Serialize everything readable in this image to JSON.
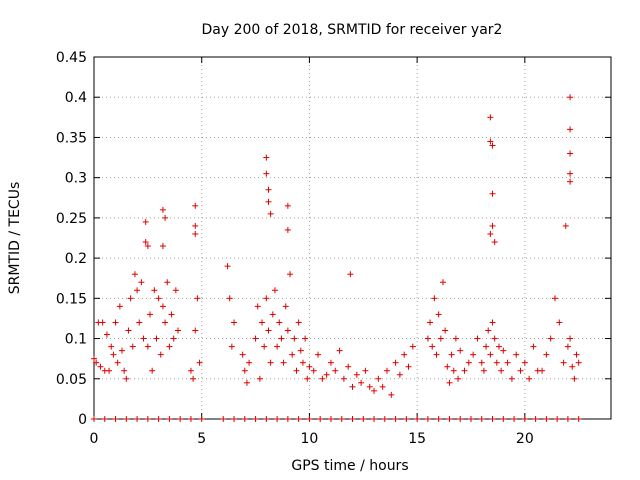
{
  "chart_data": {
    "type": "scatter",
    "title": "Day 200 of 2018, SRMTID for receiver yar2",
    "xlabel": "GPS time / hours",
    "ylabel": "SRMTID / TECUs",
    "xlim": [
      0,
      24
    ],
    "ylim": [
      0,
      0.45
    ],
    "xticks": [
      0,
      5,
      10,
      15,
      20
    ],
    "xtick_labels": [
      "0",
      "5",
      "10",
      "15",
      "20"
    ],
    "yticks": [
      0,
      0.05,
      0.1,
      0.15,
      0.2,
      0.25,
      0.3,
      0.35,
      0.4,
      0.45
    ],
    "ytick_labels": [
      "0",
      "0.05",
      "0.1",
      "0.15",
      "0.2",
      "0.25",
      "0.3",
      "0.35",
      "0.4",
      "0.45"
    ],
    "grid": true,
    "marker": "+",
    "color": "#e00000",
    "series": [
      {
        "name": "SRMTID",
        "x": [
          0.0,
          0.1,
          0.2,
          0.3,
          0.4,
          0.5,
          0.6,
          0.7,
          0.8,
          0.9,
          1.0,
          1.1,
          1.2,
          1.3,
          1.4,
          1.5,
          1.6,
          1.7,
          1.8,
          1.9,
          2.0,
          2.1,
          2.2,
          2.3,
          2.4,
          2.5,
          2.6,
          2.7,
          2.8,
          2.9,
          3.0,
          3.1,
          3.2,
          3.3,
          3.4,
          3.5,
          3.6,
          3.7,
          3.8,
          3.9,
          4.5,
          4.6,
          4.7,
          4.8,
          4.9,
          6.2,
          6.3,
          6.4,
          6.5,
          6.9,
          7.0,
          7.1,
          7.2,
          7.5,
          7.6,
          7.7,
          7.8,
          7.9,
          8.0,
          8.1,
          8.2,
          8.3,
          8.4,
          8.5,
          8.6,
          8.7,
          8.8,
          8.9,
          9.0,
          9.1,
          9.2,
          9.3,
          9.4,
          9.5,
          9.6,
          9.7,
          9.8,
          9.9,
          10.0,
          10.2,
          10.4,
          10.6,
          10.8,
          11.0,
          11.2,
          11.4,
          11.6,
          11.8,
          12.0,
          12.2,
          12.4,
          12.6,
          12.8,
          13.0,
          13.2,
          13.4,
          13.6,
          13.8,
          14.0,
          14.2,
          14.4,
          14.6,
          14.8,
          15.5,
          15.6,
          15.7,
          15.8,
          15.9,
          16.0,
          16.1,
          16.2,
          16.3,
          16.4,
          16.5,
          16.6,
          16.7,
          16.8,
          16.9,
          17.0,
          17.2,
          17.4,
          17.6,
          17.8,
          18.0,
          18.1,
          18.2,
          18.3,
          18.4,
          18.5,
          18.6,
          18.7,
          18.8,
          18.9,
          19.0,
          19.2,
          19.4,
          19.6,
          19.8,
          20.0,
          20.2,
          20.4,
          20.6,
          20.8,
          21.0,
          21.2,
          21.4,
          21.6,
          21.8,
          22.0,
          22.1,
          22.2,
          22.3,
          22.4,
          22.5,
          2.4,
          2.5,
          3.2,
          3.3,
          3.2,
          4.7,
          4.7,
          4.7,
          8.0,
          8.0,
          8.1,
          8.1,
          8.2,
          9.0,
          9.0,
          11.9,
          18.4,
          18.4,
          18.5,
          18.5,
          18.5,
          18.4,
          18.6,
          22.1,
          22.1,
          22.1,
          22.1,
          22.1,
          21.9,
          0.0,
          0.5,
          1.0,
          1.5,
          2.0,
          2.5,
          3.0,
          3.5,
          4.0,
          4.5,
          5.0,
          6.0,
          6.5,
          7.0,
          7.5,
          8.0,
          8.5,
          9.0,
          9.5,
          10.0,
          10.5,
          11.0,
          11.5,
          12.0,
          12.5,
          13.0,
          13.5,
          14.0,
          14.5,
          15.0,
          15.5,
          16.0,
          16.5,
          17.0,
          17.5,
          18.0,
          18.5,
          19.0,
          19.5,
          20.0,
          20.5,
          21.0,
          21.5,
          22.0,
          22.5
        ],
        "y": [
          0.075,
          0.07,
          0.12,
          0.065,
          0.12,
          0.06,
          0.105,
          0.06,
          0.09,
          0.08,
          0.12,
          0.07,
          0.14,
          0.085,
          0.06,
          0.05,
          0.11,
          0.15,
          0.09,
          0.18,
          0.16,
          0.12,
          0.17,
          0.1,
          0.22,
          0.09,
          0.13,
          0.06,
          0.16,
          0.1,
          0.15,
          0.08,
          0.14,
          0.12,
          0.17,
          0.09,
          0.13,
          0.1,
          0.16,
          0.11,
          0.06,
          0.05,
          0.11,
          0.15,
          0.07,
          0.19,
          0.15,
          0.09,
          0.12,
          0.08,
          0.06,
          0.045,
          0.07,
          0.1,
          0.14,
          0.05,
          0.12,
          0.09,
          0.15,
          0.11,
          0.07,
          0.13,
          0.16,
          0.09,
          0.12,
          0.1,
          0.07,
          0.14,
          0.11,
          0.18,
          0.08,
          0.1,
          0.06,
          0.12,
          0.085,
          0.07,
          0.1,
          0.05,
          0.065,
          0.06,
          0.08,
          0.05,
          0.055,
          0.07,
          0.06,
          0.085,
          0.05,
          0.065,
          0.04,
          0.055,
          0.045,
          0.06,
          0.04,
          0.035,
          0.05,
          0.04,
          0.06,
          0.03,
          0.07,
          0.055,
          0.08,
          0.065,
          0.09,
          0.1,
          0.12,
          0.09,
          0.15,
          0.08,
          0.13,
          0.1,
          0.17,
          0.11,
          0.065,
          0.045,
          0.08,
          0.06,
          0.1,
          0.05,
          0.085,
          0.06,
          0.07,
          0.08,
          0.1,
          0.07,
          0.06,
          0.09,
          0.11,
          0.08,
          0.12,
          0.1,
          0.07,
          0.09,
          0.06,
          0.085,
          0.07,
          0.05,
          0.08,
          0.06,
          0.07,
          0.05,
          0.09,
          0.06,
          0.06,
          0.08,
          0.1,
          0.15,
          0.12,
          0.07,
          0.09,
          0.1,
          0.065,
          0.05,
          0.08,
          0.07,
          0.245,
          0.215,
          0.26,
          0.25,
          0.215,
          0.265,
          0.24,
          0.23,
          0.325,
          0.305,
          0.285,
          0.27,
          0.255,
          0.265,
          0.235,
          0.18,
          0.375,
          0.345,
          0.34,
          0.28,
          0.24,
          0.23,
          0.22,
          0.4,
          0.36,
          0.33,
          0.305,
          0.295,
          0.24,
          0,
          0,
          0,
          0,
          0,
          0,
          0,
          0,
          0,
          0,
          0,
          0,
          0,
          0,
          0,
          0,
          0,
          0,
          0,
          0,
          0,
          0,
          0,
          0,
          0,
          0,
          0,
          0,
          0,
          0,
          0,
          0,
          0,
          0,
          0,
          0,
          0,
          0,
          0,
          0,
          0,
          0,
          0,
          0,
          0
        ]
      }
    ]
  }
}
